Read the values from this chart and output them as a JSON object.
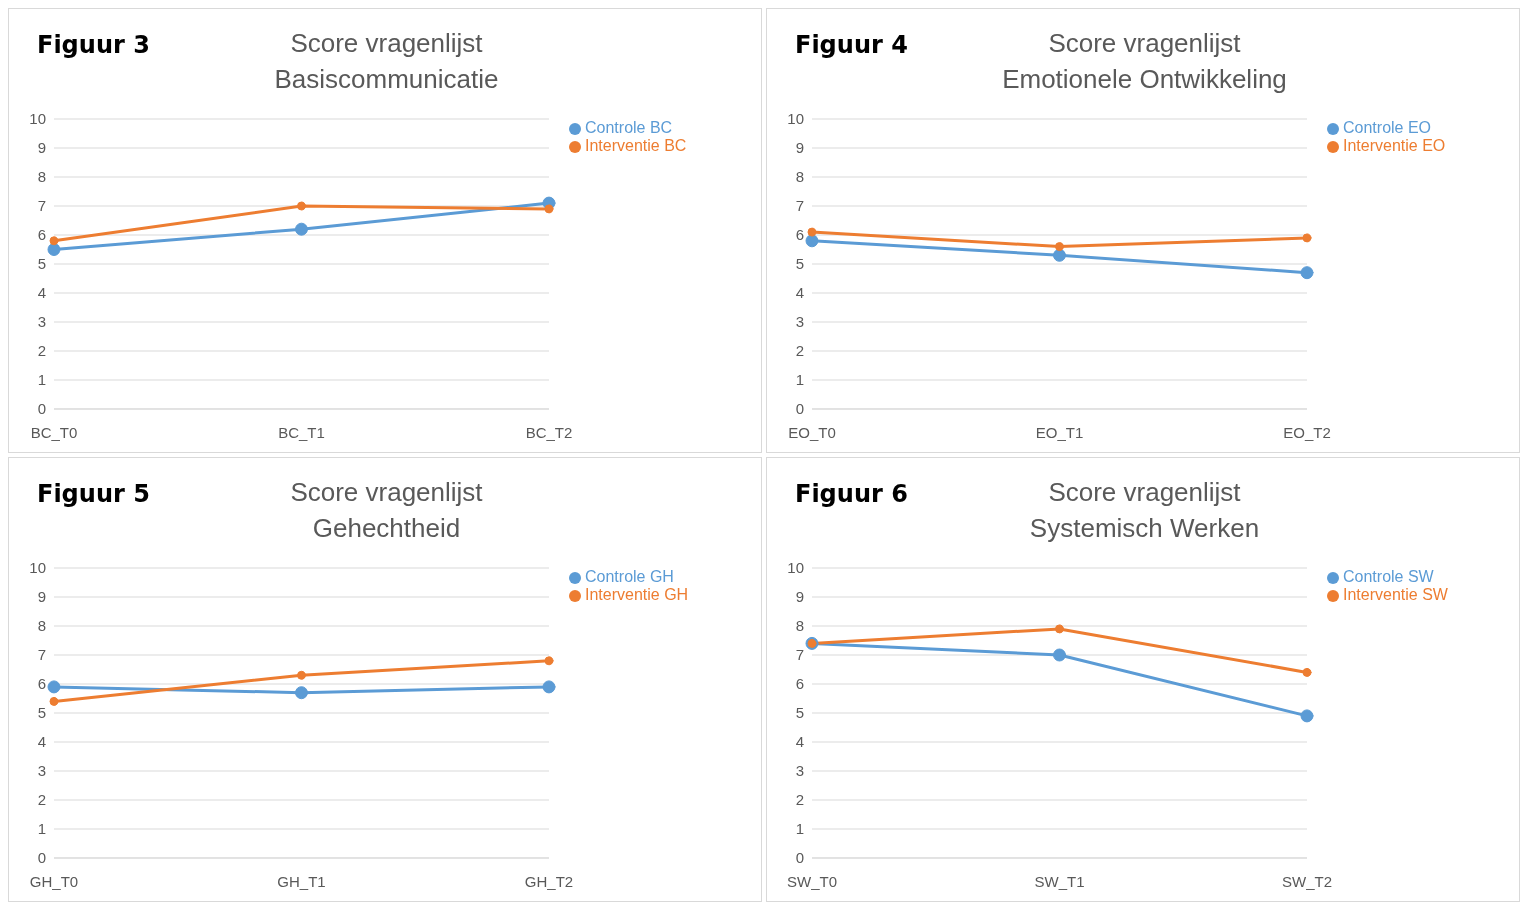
{
  "chart_data": [
    {
      "type": "line",
      "title": "Score vragenlijst",
      "subtitle": "Basiscommunicatie",
      "annotations": [
        "Figuur 3"
      ],
      "categories": [
        "BC_T0",
        "BC_T1",
        "BC_T2"
      ],
      "series": [
        {
          "name": "Controle BC",
          "color": "#5b9bd5",
          "values": [
            5.5,
            6.2,
            7.1
          ]
        },
        {
          "name": "Interventie BC",
          "color": "#ed7d31",
          "values": [
            5.8,
            7.0,
            6.9
          ]
        }
      ],
      "ylim": [
        0,
        10
      ],
      "yticks": [
        0,
        1,
        2,
        3,
        4,
        5,
        6,
        7,
        8,
        9,
        10
      ],
      "grid": "y",
      "legend": "right",
      "marker": "circle"
    },
    {
      "type": "line",
      "title": "Score vragenlijst",
      "subtitle": "Emotionele Ontwikkeling",
      "annotations": [
        "Figuur 4"
      ],
      "categories": [
        "EO_T0",
        "EO_T1",
        "EO_T2"
      ],
      "series": [
        {
          "name": "Controle EO",
          "color": "#5b9bd5",
          "values": [
            5.8,
            5.3,
            4.7
          ]
        },
        {
          "name": "Interventie EO",
          "color": "#ed7d31",
          "values": [
            6.1,
            5.6,
            5.9
          ]
        }
      ],
      "ylim": [
        0,
        10
      ],
      "yticks": [
        0,
        1,
        2,
        3,
        4,
        5,
        6,
        7,
        8,
        9,
        10
      ],
      "grid": "y",
      "legend": "right",
      "marker": "circle"
    },
    {
      "type": "line",
      "title": "Score vragenlijst",
      "subtitle": "Gehechtheid",
      "annotations": [
        "Figuur 5"
      ],
      "categories": [
        "GH_T0",
        "GH_T1",
        "GH_T2"
      ],
      "series": [
        {
          "name": "Controle GH",
          "color": "#5b9bd5",
          "values": [
            5.9,
            5.7,
            5.9
          ]
        },
        {
          "name": "Interventie GH",
          "color": "#ed7d31",
          "values": [
            5.4,
            6.3,
            6.8
          ]
        }
      ],
      "ylim": [
        0,
        10
      ],
      "yticks": [
        0,
        1,
        2,
        3,
        4,
        5,
        6,
        7,
        8,
        9,
        10
      ],
      "grid": "y",
      "legend": "right",
      "marker": "circle"
    },
    {
      "type": "line",
      "title": "Score vragenlijst",
      "subtitle": "Systemisch Werken",
      "annotations": [
        "Figuur 6"
      ],
      "categories": [
        "SW_T0",
        "SW_T1",
        "SW_T2"
      ],
      "series": [
        {
          "name": "Controle SW",
          "color": "#5b9bd5",
          "values": [
            7.4,
            7.0,
            4.9
          ]
        },
        {
          "name": "Interventie SW",
          "color": "#ed7d31",
          "values": [
            7.4,
            7.9,
            6.4
          ]
        }
      ],
      "ylim": [
        0,
        10
      ],
      "yticks": [
        0,
        1,
        2,
        3,
        4,
        5,
        6,
        7,
        8,
        9,
        10
      ],
      "grid": "y",
      "legend": "right",
      "marker": "circle"
    }
  ]
}
